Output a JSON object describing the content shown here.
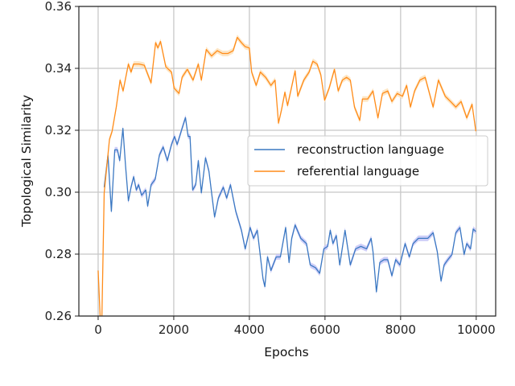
{
  "chart_data": {
    "type": "line",
    "title": "",
    "xlabel": "Epochs",
    "ylabel": "Topological Similarity",
    "xlim": [
      -510,
      10515
    ],
    "ylim": [
      0.26,
      0.36
    ],
    "xticks": [
      "0",
      "2000",
      "4000",
      "6000",
      "8000",
      "10000"
    ],
    "xtick_values": [
      0,
      2000,
      4000,
      6000,
      8000,
      10000
    ],
    "yticks": [
      "0.26",
      "0.28",
      "0.30",
      "0.32",
      "0.34",
      "0.36"
    ],
    "ytick_values": [
      0.26,
      0.28,
      0.3,
      0.32,
      0.34,
      0.36
    ],
    "grid": true,
    "legend_position": "center-right",
    "series": [
      {
        "name": "reconstruction language",
        "color": "#3b78c2",
        "band_color": "#c9c9f7",
        "x": [
          160,
          260,
          350,
          440,
          510,
          570,
          655,
          725,
          800,
          870,
          940,
          1010,
          1070,
          1150,
          1260,
          1310,
          1400,
          1510,
          1620,
          1720,
          1830,
          1940,
          2020,
          2090,
          2220,
          2310,
          2380,
          2430,
          2500,
          2580,
          2650,
          2730,
          2840,
          2930,
          3080,
          3180,
          3310,
          3400,
          3500,
          3640,
          3790,
          3890,
          4020,
          4110,
          4210,
          4360,
          4410,
          4480,
          4570,
          4710,
          4820,
          4960,
          5050,
          5120,
          5210,
          5360,
          5510,
          5610,
          5750,
          5860,
          5970,
          6070,
          6140,
          6210,
          6300,
          6390,
          6530,
          6670,
          6810,
          6950,
          7100,
          7220,
          7270,
          7360,
          7450,
          7560,
          7660,
          7770,
          7870,
          7980,
          8120,
          8230,
          8330,
          8470,
          8620,
          8720,
          8860,
          8970,
          9070,
          9150,
          9250,
          9360,
          9460,
          9570,
          9680,
          9750,
          9850,
          9920,
          9990
        ],
        "y": [
          0.3016,
          0.312,
          0.2938,
          0.3137,
          0.3137,
          0.3102,
          0.3206,
          0.3085,
          0.2972,
          0.3016,
          0.305,
          0.3007,
          0.3024,
          0.299,
          0.3007,
          0.2955,
          0.3024,
          0.3042,
          0.312,
          0.3146,
          0.3102,
          0.3154,
          0.318,
          0.3154,
          0.3206,
          0.3241,
          0.318,
          0.318,
          0.3007,
          0.3024,
          0.3102,
          0.2998,
          0.3111,
          0.3068,
          0.292,
          0.2981,
          0.3016,
          0.2981,
          0.3024,
          0.2938,
          0.2877,
          0.2817,
          0.2886,
          0.2851,
          0.2877,
          0.2721,
          0.2695,
          0.2791,
          0.2747,
          0.2791,
          0.2791,
          0.2886,
          0.2773,
          0.2851,
          0.2894,
          0.2851,
          0.2834,
          0.2765,
          0.2756,
          0.2738,
          0.2817,
          0.2825,
          0.2877,
          0.2834,
          0.286,
          0.2765,
          0.2877,
          0.2765,
          0.2817,
          0.2825,
          0.2817,
          0.2851,
          0.2808,
          0.2678,
          0.2773,
          0.2782,
          0.2782,
          0.273,
          0.2782,
          0.2765,
          0.2834,
          0.2791,
          0.2834,
          0.2851,
          0.2851,
          0.2851,
          0.2869,
          0.2808,
          0.2713,
          0.2765,
          0.2782,
          0.2799,
          0.2869,
          0.2886,
          0.2799,
          0.2834,
          0.2817,
          0.2881,
          0.2873
        ]
      },
      {
        "name": "referential language",
        "color": "#ff8c1a",
        "band_color": "#fde3bf",
        "x": [
          0,
          60,
          100,
          160,
          300,
          370,
          480,
          580,
          660,
          800,
          870,
          940,
          1080,
          1220,
          1400,
          1520,
          1580,
          1650,
          1790,
          1940,
          2010,
          2140,
          2220,
          2360,
          2510,
          2650,
          2730,
          2860,
          3000,
          3150,
          3290,
          3430,
          3570,
          3680,
          3790,
          3890,
          4000,
          4060,
          4180,
          4290,
          4430,
          4570,
          4680,
          4770,
          4850,
          4940,
          5010,
          5080,
          5210,
          5280,
          5440,
          5580,
          5680,
          5790,
          5890,
          5990,
          6110,
          6250,
          6350,
          6460,
          6570,
          6670,
          6780,
          6920,
          6990,
          7130,
          7270,
          7400,
          7520,
          7660,
          7770,
          7910,
          8050,
          8160,
          8260,
          8370,
          8510,
          8650,
          8860,
          9000,
          9180,
          9320,
          9460,
          9600,
          9750,
          9890,
          9990
        ],
        "y": [
          0.2747,
          0.258,
          0.26,
          0.2998,
          0.3171,
          0.3197,
          0.3275,
          0.3362,
          0.3327,
          0.3414,
          0.3388,
          0.3414,
          0.3414,
          0.341,
          0.3353,
          0.3483,
          0.3466,
          0.3487,
          0.3405,
          0.3388,
          0.3336,
          0.3319,
          0.3371,
          0.3397,
          0.3362,
          0.3414,
          0.3362,
          0.3461,
          0.344,
          0.3457,
          0.3448,
          0.3448,
          0.3457,
          0.35,
          0.3483,
          0.347,
          0.3466,
          0.3388,
          0.3345,
          0.3388,
          0.3371,
          0.3345,
          0.3362,
          0.3223,
          0.3266,
          0.3323,
          0.328,
          0.3319,
          0.3392,
          0.331,
          0.3362,
          0.3388,
          0.3423,
          0.3414,
          0.3379,
          0.3297,
          0.3336,
          0.3397,
          0.3327,
          0.3362,
          0.3371,
          0.3362,
          0.3275,
          0.3232,
          0.3301,
          0.3301,
          0.3327,
          0.324,
          0.3319,
          0.3327,
          0.3293,
          0.3319,
          0.331,
          0.3345,
          0.3275,
          0.3327,
          0.3362,
          0.3371,
          0.3275,
          0.3362,
          0.331,
          0.3293,
          0.3275,
          0.3293,
          0.324,
          0.3284,
          0.3197
        ]
      }
    ]
  }
}
